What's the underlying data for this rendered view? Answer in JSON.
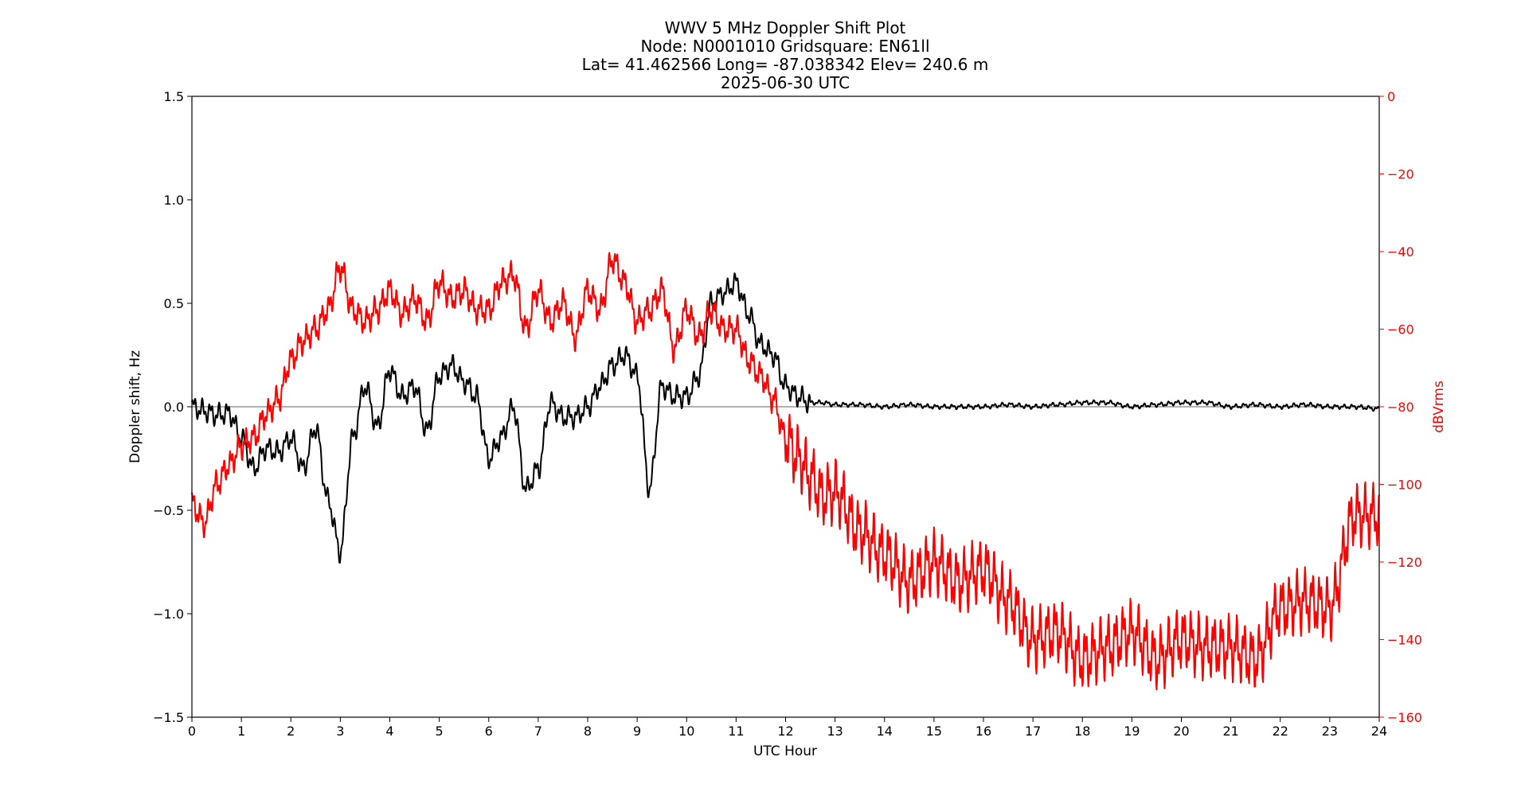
{
  "chart_data": {
    "type": "line",
    "title_lines": [
      "WWV 5 MHz Doppler Shift Plot",
      "Node:  N0001010     Gridsquare:  EN61ll",
      "Lat= 41.462566    Long= -87.038342    Elev= 240.6 m",
      "2025-06-30  UTC"
    ],
    "xlabel": "UTC Hour",
    "ylabel_left": "Doppler shift, Hz",
    "ylabel_right": "dBVrms",
    "xlim": [
      0,
      24
    ],
    "ylim_left": [
      -1.5,
      1.5
    ],
    "ylim_right": [
      -160,
      0
    ],
    "x_ticks": [
      "0",
      "1",
      "2",
      "3",
      "4",
      "5",
      "6",
      "7",
      "8",
      "9",
      "10",
      "11",
      "12",
      "13",
      "14",
      "15",
      "16",
      "17",
      "18",
      "19",
      "20",
      "21",
      "22",
      "23",
      "24"
    ],
    "y_left_ticks": [
      "1.5",
      "1.0",
      "0.5",
      "0.0",
      "−0.5",
      "−1.0",
      "−1.5"
    ],
    "y_right_ticks": [
      "0",
      "−20",
      "−40",
      "−60",
      "−80",
      "−100",
      "−120",
      "−140",
      "−160"
    ],
    "zero_line": 0.0,
    "series": [
      {
        "axis": "left",
        "color": "#000000",
        "x": [
          0,
          0.25,
          0.5,
          0.75,
          1,
          1.25,
          1.5,
          1.75,
          2,
          2.25,
          2.5,
          2.75,
          3,
          3.25,
          3.5,
          3.75,
          4,
          4.25,
          4.5,
          4.75,
          5,
          5.25,
          5.5,
          5.75,
          6,
          6.25,
          6.5,
          6.75,
          7,
          7.25,
          7.5,
          7.75,
          8,
          8.25,
          8.5,
          8.75,
          9,
          9.25,
          9.5,
          9.75,
          10,
          10.25,
          10.5,
          10.75,
          11,
          11.25,
          11.5,
          11.75,
          12,
          12.25,
          12.5,
          12.75,
          13,
          13.5,
          14,
          14.5,
          15,
          15.5,
          16,
          16.5,
          17,
          17.5,
          18,
          18.5,
          19,
          19.5,
          20,
          20.5,
          21,
          21.5,
          22,
          22.5,
          23,
          23.5,
          24
        ],
        "y": [
          0.0,
          -0.02,
          -0.04,
          -0.03,
          -0.15,
          -0.3,
          -0.2,
          -0.22,
          -0.15,
          -0.3,
          -0.1,
          -0.45,
          -0.7,
          -0.15,
          0.1,
          -0.1,
          0.18,
          0.05,
          0.1,
          -0.12,
          0.15,
          0.2,
          0.12,
          0.05,
          -0.25,
          -0.15,
          0.0,
          -0.4,
          -0.3,
          0.02,
          -0.05,
          -0.05,
          0.0,
          0.1,
          0.2,
          0.25,
          0.15,
          -0.4,
          0.1,
          0.05,
          0.05,
          0.15,
          0.5,
          0.55,
          0.6,
          0.45,
          0.3,
          0.25,
          0.1,
          0.05,
          0.02,
          0.02,
          0.01,
          0.01,
          0.0,
          0.01,
          0.0,
          0.0,
          0.0,
          0.01,
          0.0,
          0.01,
          0.02,
          0.02,
          0.0,
          0.01,
          0.02,
          0.02,
          0.0,
          0.01,
          0.0,
          0.01,
          0.0,
          0.0,
          -0.01
        ]
      },
      {
        "axis": "right",
        "color": "#ff0000",
        "x": [
          0,
          0.25,
          0.5,
          0.75,
          1,
          1.25,
          1.5,
          1.75,
          2,
          2.25,
          2.5,
          2.75,
          3,
          3.25,
          3.5,
          3.75,
          4,
          4.25,
          4.5,
          4.75,
          5,
          5.25,
          5.5,
          5.75,
          6,
          6.25,
          6.5,
          6.75,
          7,
          7.25,
          7.5,
          7.75,
          8,
          8.25,
          8.5,
          8.75,
          9,
          9.25,
          9.5,
          9.75,
          10,
          10.25,
          10.5,
          10.75,
          11,
          11.25,
          11.5,
          11.75,
          12,
          12.25,
          12.5,
          12.75,
          13,
          13.5,
          14,
          14.5,
          15,
          15.5,
          16,
          16.5,
          17,
          17.5,
          18,
          18.5,
          19,
          19.5,
          20,
          20.5,
          21,
          21.5,
          22,
          22.5,
          23,
          23.5,
          24
        ],
        "y": [
          -105,
          -110,
          -100,
          -95,
          -90,
          -88,
          -82,
          -78,
          -68,
          -63,
          -60,
          -55,
          -44,
          -55,
          -58,
          -55,
          -50,
          -56,
          -52,
          -58,
          -48,
          -52,
          -50,
          -55,
          -55,
          -48,
          -46,
          -60,
          -50,
          -58,
          -53,
          -62,
          -50,
          -55,
          -42,
          -48,
          -58,
          -55,
          -50,
          -65,
          -55,
          -62,
          -55,
          -60,
          -60,
          -68,
          -72,
          -78,
          -88,
          -93,
          -98,
          -103,
          -102,
          -112,
          -118,
          -125,
          -120,
          -125,
          -122,
          -130,
          -140,
          -138,
          -145,
          -142,
          -138,
          -145,
          -140,
          -142,
          -142,
          -145,
          -132,
          -130,
          -132,
          -108,
          -108
        ]
      }
    ]
  }
}
